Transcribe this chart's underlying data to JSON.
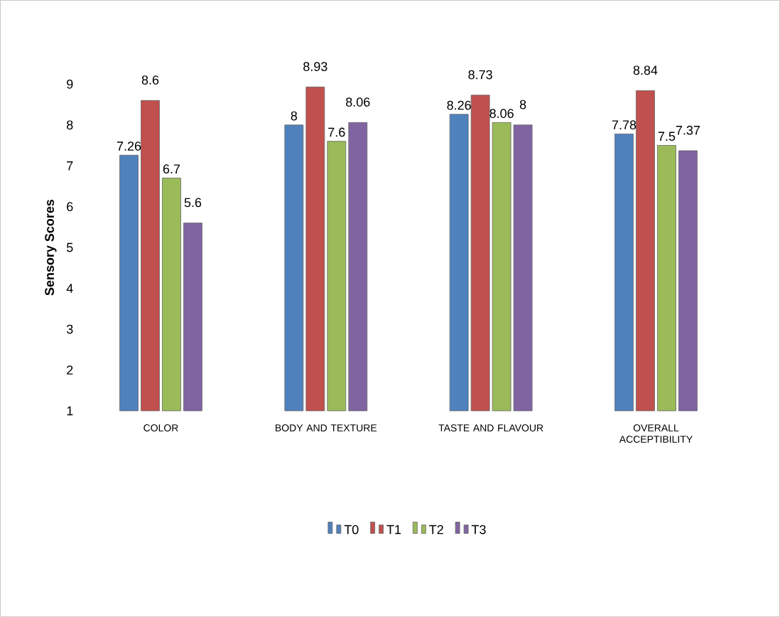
{
  "chart_data": {
    "type": "bar",
    "ylabel": "Sensory Scores",
    "categories": [
      "COLOR",
      "BODY AND TEXTURE",
      "TASTE AND FLAVOUR",
      "OVERALL ACCEPTIBILITY"
    ],
    "series": [
      {
        "name": "T0",
        "color": "#4f81bd",
        "values": [
          7.26,
          8,
          8.26,
          7.78
        ]
      },
      {
        "name": "T1",
        "color": "#c0504d",
        "values": [
          8.6,
          8.93,
          8.73,
          8.84
        ]
      },
      {
        "name": "T2",
        "color": "#9bbb59",
        "values": [
          6.7,
          7.6,
          8.06,
          7.5
        ]
      },
      {
        "name": "T3",
        "color": "#8064a2",
        "values": [
          5.6,
          8.06,
          8,
          7.37
        ]
      }
    ],
    "ylim": [
      1,
      9
    ],
    "yticks": [
      1,
      2,
      3,
      4,
      5,
      6,
      7,
      8,
      9
    ],
    "data_labels": true,
    "legend": "bottom",
    "grid": false
  }
}
